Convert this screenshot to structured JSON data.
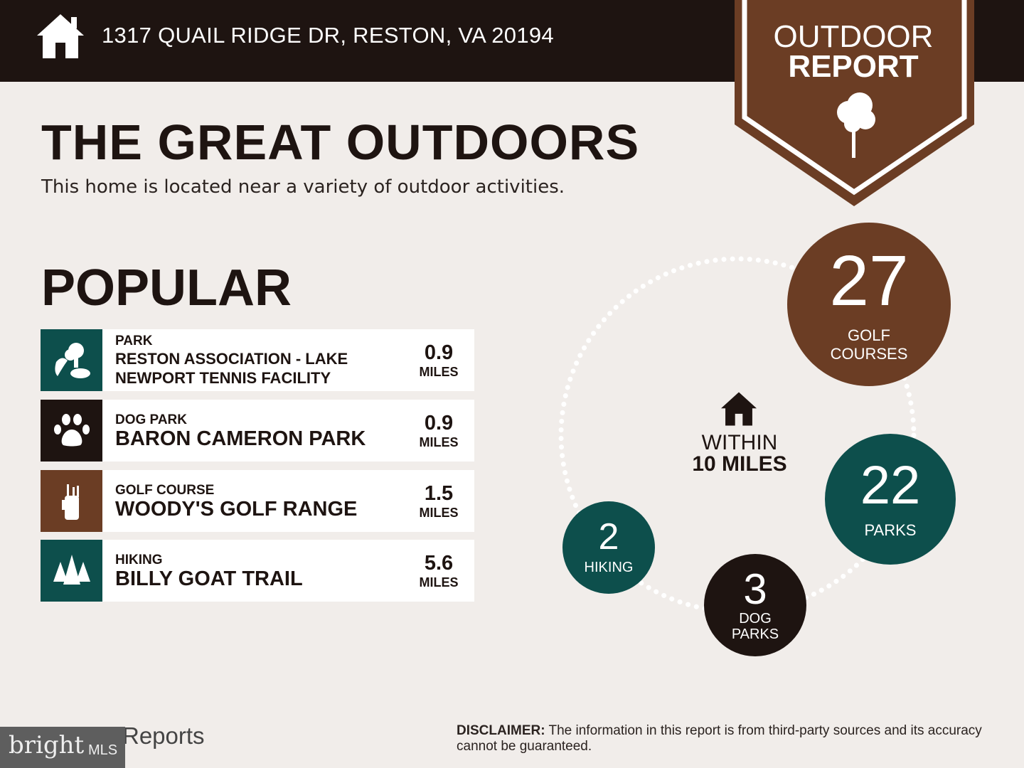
{
  "header": {
    "address": "1317 QUAIL RIDGE DR, RESTON, VA 20194",
    "badge_line1": "OUTDOOR",
    "badge_line2": "REPORT"
  },
  "title": "THE GREAT OUTDOORS",
  "subtitle": "This home is located near a variety of outdoor activities.",
  "popular": {
    "heading": "POPULAR",
    "items": [
      {
        "category": "PARK",
        "name": "RESTON ASSOCIATION - LAKE NEWPORT TENNIS FACILITY",
        "distance": "0.9",
        "unit": "MILES",
        "icon": "park-icon",
        "color": "#0d4f4c"
      },
      {
        "category": "DOG PARK",
        "name": "BARON CAMERON PARK",
        "distance": "0.9",
        "unit": "MILES",
        "icon": "paw-icon",
        "color": "#1e1411"
      },
      {
        "category": "GOLF COURSE",
        "name": "WOODY'S GOLF RANGE",
        "distance": "1.5",
        "unit": "MILES",
        "icon": "golf-bag-icon",
        "color": "#6b3d24"
      },
      {
        "category": "HIKING",
        "name": "BILLY GOAT TRAIL",
        "distance": "5.6",
        "unit": "MILES",
        "icon": "trees-icon",
        "color": "#0d4f4c"
      }
    ]
  },
  "within": {
    "line1": "WITHIN",
    "line2": "10 MILES"
  },
  "counts": {
    "golf": {
      "value": "27",
      "label1": "GOLF",
      "label2": "COURSES"
    },
    "parks": {
      "value": "22",
      "label": "PARKS"
    },
    "dog": {
      "value": "3",
      "label1": "DOG",
      "label2": "PARKS"
    },
    "hiking": {
      "value": "2",
      "label": "HIKING"
    }
  },
  "footer": {
    "disclaimer_label": "DISCLAIMER:",
    "disclaimer": " The information in this report is from third-party sources and its accuracy cannot be guaranteed.",
    "reports": "Reports",
    "logo": "bright MLS"
  },
  "colors": {
    "dark": "#1e1411",
    "brown": "#6b3d24",
    "teal": "#0d4f4c",
    "background": "#f1edea"
  }
}
